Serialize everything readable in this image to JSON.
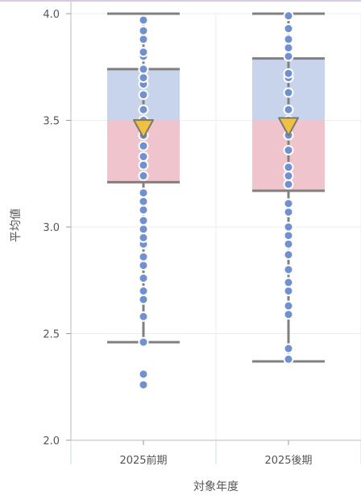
{
  "chart_data": {
    "type": "boxplot",
    "xlabel": "対象年度",
    "ylabel": "平均値",
    "ylim": [
      2.0,
      4.0
    ],
    "yticks": [
      "2.0",
      "2.5",
      "3.0",
      "3.5",
      "4.0"
    ],
    "categories": [
      "2025前期",
      "2025後期"
    ],
    "grid": true,
    "colors": {
      "upper_box": "#c8d4ec",
      "lower_box": "#f0c4cc",
      "whisker": "#808080",
      "points": "#7090d0",
      "mean_marker": "#f0c040"
    },
    "boxes": [
      {
        "category": "2025前期",
        "whisker_low": 2.46,
        "q1": 3.21,
        "median": 3.5,
        "q3": 3.74,
        "whisker_high": 4.0,
        "mean": 3.46,
        "points": [
          2.26,
          2.31,
          2.46,
          2.58,
          2.66,
          2.7,
          2.76,
          2.82,
          2.86,
          2.92,
          2.95,
          2.99,
          3.03,
          3.08,
          3.12,
          3.16,
          3.24,
          3.29,
          3.33,
          3.38,
          3.43,
          3.5,
          3.55,
          3.62,
          3.67,
          3.7,
          3.74,
          3.8,
          3.82,
          3.88,
          3.92,
          3.97
        ]
      },
      {
        "category": "2025後期",
        "whisker_low": 2.37,
        "q1": 3.17,
        "median": 3.5,
        "q3": 3.79,
        "whisker_high": 4.0,
        "mean": 3.47,
        "points": [
          2.38,
          2.43,
          2.59,
          2.63,
          2.7,
          2.74,
          2.8,
          2.87,
          2.92,
          2.96,
          3.0,
          3.07,
          3.11,
          3.2,
          3.24,
          3.28,
          3.36,
          3.43,
          3.5,
          3.55,
          3.63,
          3.7,
          3.72,
          3.8,
          3.84,
          3.88,
          3.93,
          3.99
        ]
      }
    ]
  }
}
